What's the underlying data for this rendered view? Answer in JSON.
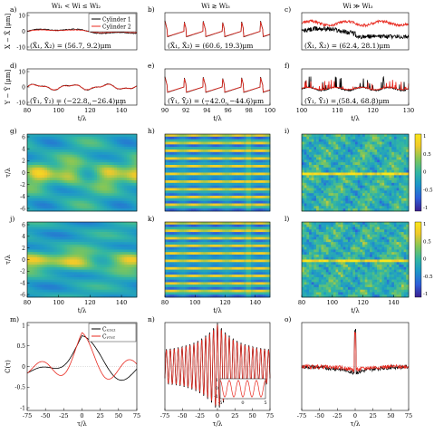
{
  "column_titles": [
    "Wi₁ < Wi ≤ Wi₂",
    "Wi ≳ Wi₃",
    "Wi ≫ Wi₃"
  ],
  "colors": {
    "cyl1": "#000000",
    "cyl2": "#e8291f",
    "axis": "#000000"
  },
  "colormap": [
    "#3b1f8f",
    "#2e5fd9",
    "#1d98c8",
    "#31b6a3",
    "#7fc65a",
    "#f0c92a",
    "#fae61a"
  ],
  "colorbar_ticks": [
    "1",
    "0.5",
    "0",
    "-0.5",
    "-1"
  ],
  "chart_data": [
    {
      "id": "a",
      "panel_label": "a)",
      "type": "line",
      "ylabel": "X − X̄ [μm]",
      "xlim": [
        80,
        150
      ],
      "x_ticks": [],
      "y_ticks": [
        "10",
        "0",
        "-10"
      ],
      "ylim": [
        -14,
        14
      ],
      "annotation": "(X̄₁, X̄₂) = (56.7, 9.2)μm",
      "legend": [
        "Cylinder 1",
        "Cylinder 2"
      ],
      "legend_position": "top-right",
      "series": [
        {
          "name": "Cylinder 1",
          "style": "cyl1",
          "signal": "slow",
          "amp": 2.5
        },
        {
          "name": "Cylinder 2",
          "style": "cyl2",
          "signal": "slow",
          "amp": 1.6
        }
      ]
    },
    {
      "id": "b",
      "panel_label": "b)",
      "type": "line",
      "xlim": [
        90,
        100
      ],
      "x_ticks": [],
      "y_ticks": [],
      "ylim": [
        -14,
        14
      ],
      "annotation": "(X̄₁, X̄₂) = (60.6, 19.3)μm",
      "series": [
        {
          "name": "Cylinder 1",
          "style": "cyl1",
          "signal": "spiky",
          "amp": 8
        },
        {
          "name": "Cylinder 2",
          "style": "cyl2",
          "signal": "spiky",
          "amp": 7.5
        }
      ]
    },
    {
      "id": "c",
      "panel_label": "c)",
      "type": "line",
      "xlim": [
        100,
        130
      ],
      "x_ticks": [],
      "y_ticks": [],
      "ylim": [
        -14,
        14
      ],
      "annotation": "(X̄₁, X̄₂) = (62.4, 28.1)μm",
      "series": [
        {
          "name": "Cylinder 1",
          "style": "cyl1",
          "signal": "chaotic",
          "amp": 4
        },
        {
          "name": "Cylinder 2",
          "style": "cyl2",
          "signal": "chaotic",
          "amp": 2
        }
      ]
    },
    {
      "id": "d",
      "panel_label": "d)",
      "type": "line",
      "ylabel": "Y − Ȳ [μm]",
      "xlim": [
        80,
        150
      ],
      "x_ticks": [
        "80",
        "100",
        "120",
        "140"
      ],
      "xlabel": "t/λ",
      "y_ticks": [
        "10",
        "0",
        "-10"
      ],
      "ylim": [
        -14,
        14
      ],
      "annotation": "(Ȳ₁, Ȳ₂) = (−22.8, −26.4)μm",
      "series": [
        {
          "name": "Cylinder 1",
          "style": "cyl1",
          "signal": "wavy",
          "amp": 2.5
        },
        {
          "name": "Cylinder 2",
          "style": "cyl2",
          "signal": "wavy",
          "amp": 2.3
        }
      ]
    },
    {
      "id": "e",
      "panel_label": "e)",
      "type": "line",
      "xlim": [
        90,
        100
      ],
      "x_ticks": [
        "90",
        "92",
        "94",
        "96",
        "98",
        "100"
      ],
      "xlabel": "t/λ",
      "y_ticks": [],
      "ylim": [
        -14,
        14
      ],
      "annotation": "(Ȳ₁, Ȳ₂) = (−42.0, −44.6)μm",
      "series": [
        {
          "name": "Cylinder 1",
          "style": "cyl1",
          "signal": "spiky",
          "amp": 8
        },
        {
          "name": "Cylinder 2",
          "style": "cyl2",
          "signal": "spiky",
          "amp": 7.5
        }
      ]
    },
    {
      "id": "f",
      "panel_label": "f)",
      "type": "line",
      "xlim": [
        100,
        130
      ],
      "x_ticks": [
        "100",
        "110",
        "120",
        "130"
      ],
      "xlabel": "t/λ",
      "y_ticks": [],
      "ylim": [
        -14,
        14
      ],
      "annotation": "(Ȳ₁, Ȳ₂) = (58.4, 68.8)μm",
      "series": [
        {
          "name": "Cylinder 1",
          "style": "cyl1",
          "signal": "burst",
          "amp": 8
        },
        {
          "name": "Cylinder 2",
          "style": "cyl2",
          "signal": "burst",
          "amp": 6
        }
      ]
    },
    {
      "id": "g",
      "panel_label": "g)",
      "type": "heatmap",
      "ylabel": "τ/λ",
      "pattern": "blobs",
      "y_ticks": [
        "6",
        "4",
        "2",
        "0",
        "-2",
        "-4",
        "-6"
      ],
      "x_ticks": [],
      "xlim": [
        80,
        150
      ],
      "ylim": [
        -7,
        7
      ]
    },
    {
      "id": "h",
      "panel_label": "h)",
      "type": "heatmap",
      "pattern": "stripes",
      "y_ticks": [],
      "x_ticks": [],
      "xlim": [
        80,
        150
      ],
      "ylim": [
        -7,
        7
      ]
    },
    {
      "id": "i",
      "panel_label": "i)",
      "type": "heatmap",
      "pattern": "noise",
      "colorbar": true,
      "y_ticks": [],
      "x_ticks": [],
      "xlim": [
        80,
        150
      ],
      "ylim": [
        -7,
        7
      ]
    },
    {
      "id": "j",
      "panel_label": "j)",
      "type": "heatmap",
      "ylabel": "τ/λ",
      "pattern": "blobs2",
      "y_ticks": [
        "6",
        "4",
        "2",
        "0",
        "-2",
        "-4",
        "-6"
      ],
      "x_ticks": [
        "80",
        "100",
        "120",
        "140"
      ],
      "xlabel": "t/λ",
      "xlim": [
        80,
        150
      ],
      "ylim": [
        -7,
        7
      ]
    },
    {
      "id": "k",
      "panel_label": "k)",
      "type": "heatmap",
      "pattern": "stripes",
      "y_ticks": [],
      "x_ticks": [
        "80",
        "100",
        "120",
        "140"
      ],
      "xlabel": "t/λ",
      "xlim": [
        80,
        150
      ],
      "ylim": [
        -7,
        7
      ]
    },
    {
      "id": "l",
      "panel_label": "l)",
      "type": "heatmap",
      "pattern": "noise",
      "colorbar": true,
      "y_ticks": [],
      "x_ticks": [
        "80",
        "100",
        "120",
        "140"
      ],
      "xlabel": "t/λ",
      "xlim": [
        80,
        150
      ],
      "ylim": [
        -7,
        7
      ]
    },
    {
      "id": "m",
      "panel_label": "m)",
      "type": "line",
      "ylabel": "C(τ)",
      "xlabel": "τ/λ",
      "xlim": [
        -75,
        75
      ],
      "ylim": [
        -1,
        1
      ],
      "x_ticks": [
        "-75",
        "-50",
        "-25",
        "0",
        "25",
        "50",
        "75"
      ],
      "y_ticks": [
        "1",
        "0.5",
        "0",
        "-0.5",
        "-1"
      ],
      "legend": [
        "Cₓ₁ₓ₂",
        "Cᵧ₁ᵧ₂"
      ],
      "legend_position": "top-right",
      "series": [
        {
          "name": "Cₓ₁ₓ₂",
          "style": "cyl1",
          "signal": "corrSlow",
          "amp": 0.7
        },
        {
          "name": "Cᵧ₁ᵧ₂",
          "style": "cyl2",
          "signal": "corrSlow2",
          "amp": 0.6
        }
      ]
    },
    {
      "id": "n",
      "panel_label": "n)",
      "type": "line",
      "xlabel": "τ/λ",
      "xlim": [
        -75,
        75
      ],
      "ylim": [
        -1,
        1
      ],
      "x_ticks": [
        "-75",
        "-50",
        "-25",
        "0",
        "25",
        "50",
        "75"
      ],
      "y_ticks": [],
      "inset": {
        "x_ticks": [
          "-5",
          "0",
          "5"
        ],
        "y_ticks": [
          "1",
          "0",
          "-1"
        ]
      },
      "series": [
        {
          "name": "Cₓ₁ₓ₂",
          "style": "cyl1",
          "signal": "corrOsc",
          "amp": 1
        },
        {
          "name": "Cᵧ₁ᵧ₂",
          "style": "cyl2",
          "signal": "corrOsc",
          "amp": 0.95
        }
      ]
    },
    {
      "id": "o",
      "panel_label": "o)",
      "type": "line",
      "xlabel": "τ/λ",
      "xlim": [
        -75,
        75
      ],
      "ylim": [
        -1,
        1
      ],
      "x_ticks": [
        "-75",
        "-50",
        "-25",
        "0",
        "25",
        "50",
        "75"
      ],
      "y_ticks": [],
      "series": [
        {
          "name": "Cₓ₁ₓ₂",
          "style": "cyl1",
          "signal": "corrChaos",
          "amp": 0.3
        },
        {
          "name": "Cᵧ₁ᵧ₂",
          "style": "cyl2",
          "signal": "corrChaos2",
          "amp": 0.3
        }
      ]
    }
  ]
}
